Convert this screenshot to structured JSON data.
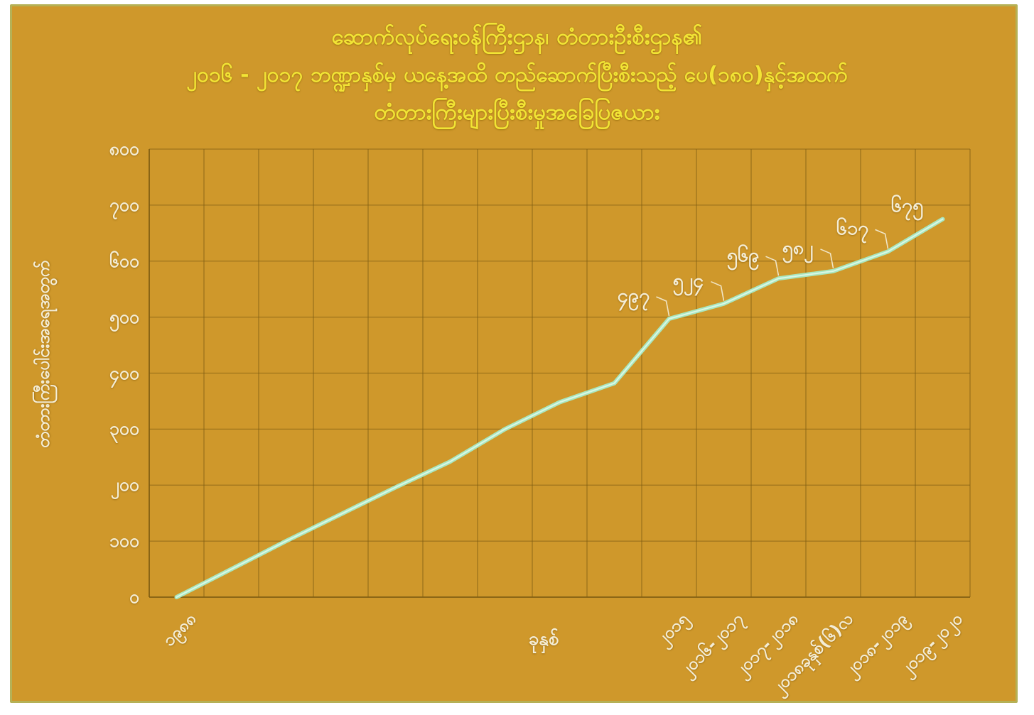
{
  "title": {
    "line1": "ဆောက်လုပ်ရေးဝန်ကြီးဌာန၊ တံတားဦးစီးဌာန၏",
    "line2": "၂၀၁၆ - ၂၀၁၇ ဘဏ္ဍာနှစ်မှ ယနေ့အထိ တည်ဆောက်ပြီးစီးသည့် ပေ(၁၈၀)နှင့်အထက်",
    "line3": "တံတားကြီးများပြီးစီးမှုအခြေပြဇယား"
  },
  "y_axis": {
    "title": "တံတားကြီးပေါင်းအရေအတွက်",
    "ticks": [
      "၈၀၀",
      "၇၀၀",
      "၆၀၀",
      "၅၀၀",
      "၄၀၀",
      "၃၀၀",
      "၂၀၀",
      "၁၀၀",
      "၀"
    ]
  },
  "x_axis": {
    "title": "ခုနှစ်"
  },
  "colors": {
    "panel_background": "#cf982b",
    "panel_border": "#b5b156",
    "page_background": "#ffffff",
    "title_text": "#f2e435",
    "axis_text": "#f4edd6",
    "grid_line": "#7d5c12",
    "series_line": "#a9e8c0",
    "series_line_core": "#e4f9ec",
    "callout_line": "#f4edd6"
  },
  "chart_data": {
    "type": "line",
    "title": "ဆောက်လုပ်ရေးဝန်ကြီးဌာန၊ တံတားဦးစီးဌာန၏ ၂၀၁၆ - ၂၀၁၇ ဘဏ္ဍာနှစ်မှ ယနေ့အထိ တည်ဆောက်ပြီးစီးသည့် ပေ(၁၈၀)နှင့်အထက် တံတားကြီးများပြီးစီးမှုအခြေပြဇယား",
    "xlabel": "ခုနှစ်",
    "ylabel": "တံတားကြီးပေါင်းအရေအတွက်",
    "ylim": [
      0,
      800
    ],
    "y_tick_step": 100,
    "grid": true,
    "legend": false,
    "categories": [
      "၁၉၈၈",
      "",
      "",
      "",
      "",
      "",
      "",
      "",
      "",
      "၂၀၁၅",
      "၂၀၁၆-၂၀၁၇",
      "၂၀၁၇-၂၀၁၈",
      "၂၀၁၈ခုနှစ်(၆)လ",
      "၂၀၁၈-၂၀၁၉",
      "၂၀၁၉-၂၀၂၀"
    ],
    "values": [
      0,
      50,
      100,
      148,
      196,
      242,
      300,
      348,
      382,
      497,
      524,
      569,
      582,
      617,
      675
    ],
    "data_labels": [
      {
        "band": 9,
        "value": 497,
        "text": "၄၉၇"
      },
      {
        "band": 10,
        "value": 524,
        "text": "၅၂၄"
      },
      {
        "band": 11,
        "value": 569,
        "text": "၅၆၉"
      },
      {
        "band": 12,
        "value": 582,
        "text": "၅၈၂"
      },
      {
        "band": 13,
        "value": 617,
        "text": "၆၁၇"
      },
      {
        "band": 14,
        "value": 675,
        "text": "၆၇၅"
      }
    ]
  }
}
